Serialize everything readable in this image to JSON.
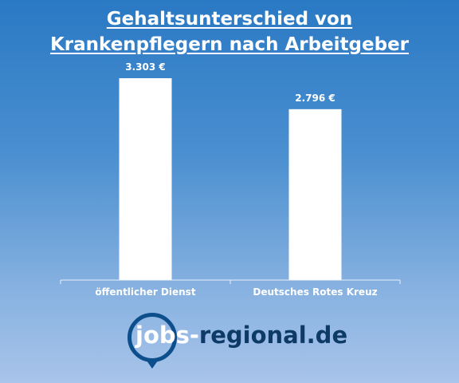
{
  "header": {
    "title_line1": "Gehaltsunterschied von",
    "title_line2": "Krankenpflegern nach Arbeitgeber"
  },
  "colors": {
    "bar": "#ffffff",
    "axis": "#e8f0fa"
  },
  "chart_data": {
    "type": "bar",
    "title": "Gehaltsunterschied von Krankenpflegern nach Arbeitgeber",
    "categories": [
      "öffentlicher Dienst",
      "Deutsches Rotes Kreuz"
    ],
    "values": [
      3303,
      2796
    ],
    "value_labels": [
      "3.303 €",
      "2.796 €"
    ],
    "xlabel": "",
    "ylabel": "",
    "ylim": [
      0,
      3500
    ],
    "grid": false,
    "legend": "none"
  },
  "logo": {
    "part1": "jobs-",
    "part2": "regional.de"
  }
}
